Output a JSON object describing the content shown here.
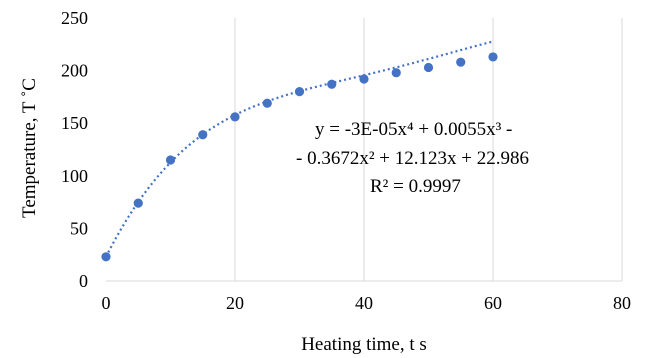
{
  "chart_data": {
    "type": "scatter",
    "xlabel": "Heating time, t  s",
    "ylabel": "Temperature, T ˚C",
    "xlim": [
      0,
      80
    ],
    "ylim": [
      0,
      250
    ],
    "x_ticks": [
      0,
      20,
      40,
      60,
      80
    ],
    "y_ticks": [
      0,
      50,
      100,
      150,
      200,
      250
    ],
    "x_tick_labels": [
      "0",
      "20",
      "40",
      "60",
      "80"
    ],
    "y_tick_labels": [
      "0",
      "50",
      "100",
      "150",
      "200",
      "250"
    ],
    "grid": "vertical",
    "series": [
      {
        "x": [
          0,
          5,
          10,
          15,
          20,
          25,
          30,
          35,
          40,
          45,
          50,
          55,
          60
        ],
        "y": [
          23,
          74,
          115,
          139,
          156,
          169,
          180,
          187,
          192,
          198,
          203,
          208,
          213
        ],
        "marker_color": "#4472C4"
      }
    ],
    "trendline": {
      "type": "polynomial",
      "coefficients": [
        22.986,
        12.123,
        -0.3672,
        0.0055,
        -3e-05
      ],
      "style": "dotted",
      "color": "#4472C4",
      "equation_line1": "y = -3E-05x⁴ + 0.0055x³ -",
      "equation_line2": "- 0.3672x² + 12.123x + 22.986",
      "r_squared": "R² = 0.9997"
    }
  }
}
